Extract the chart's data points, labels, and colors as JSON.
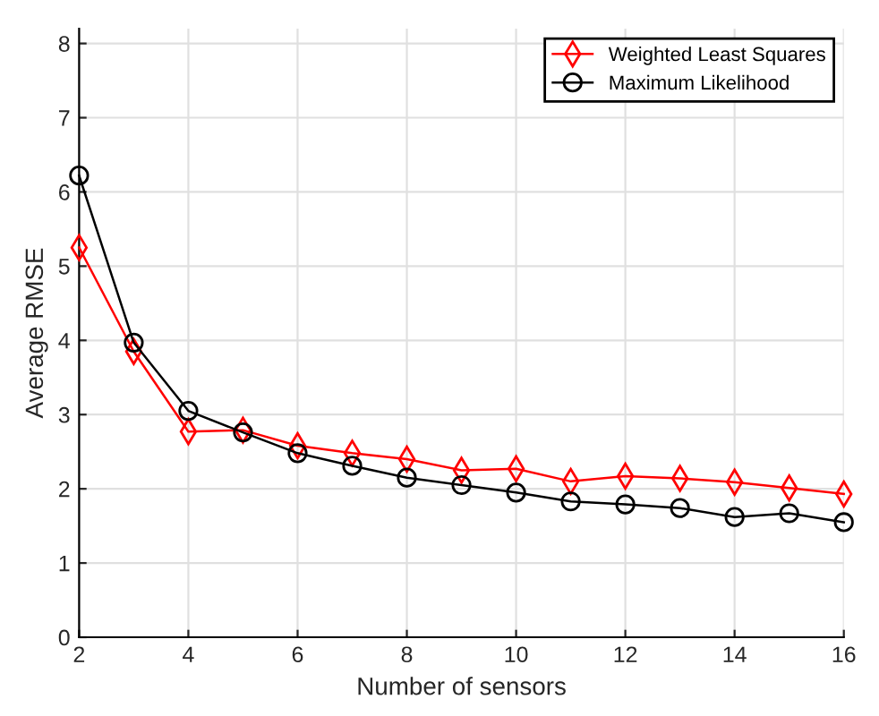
{
  "chart_data": {
    "type": "line",
    "xlabel": "Number of sensors",
    "ylabel": "Average RMSE",
    "x": [
      2,
      3,
      4,
      5,
      6,
      7,
      8,
      9,
      10,
      11,
      12,
      13,
      14,
      15,
      16
    ],
    "series": [
      {
        "name": "Weighted Least Squares",
        "color": "#ff0000",
        "marker": "diamond",
        "values": [
          5.25,
          3.85,
          2.77,
          2.79,
          2.58,
          2.48,
          2.4,
          2.25,
          2.27,
          2.1,
          2.17,
          2.14,
          2.09,
          2.01,
          1.93
        ]
      },
      {
        "name": "Maximum Likelihood",
        "color": "#000000",
        "marker": "circle",
        "values": [
          6.22,
          3.97,
          3.05,
          2.76,
          2.48,
          2.31,
          2.15,
          2.05,
          1.95,
          1.83,
          1.79,
          1.74,
          1.62,
          1.67,
          1.55
        ]
      }
    ],
    "xlim": [
      2,
      16
    ],
    "ylim": [
      0,
      8.2
    ],
    "xticks": [
      2,
      4,
      6,
      8,
      10,
      12,
      14,
      16
    ],
    "yticks": [
      0,
      1,
      2,
      3,
      4,
      5,
      6,
      7,
      8
    ],
    "grid": true,
    "legend": "top right",
    "line_style": "solid"
  }
}
